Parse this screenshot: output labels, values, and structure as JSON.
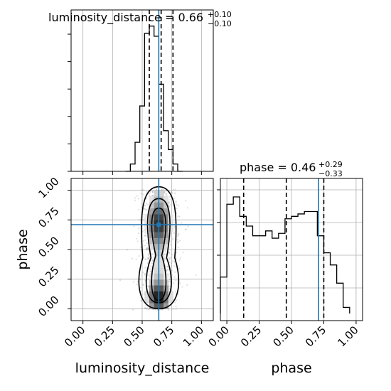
{
  "chart_data": {
    "type": "corner",
    "parameters": [
      "luminosity_distance",
      "phase"
    ],
    "truths": {
      "luminosity_distance": 0.64,
      "phase": 0.71
    },
    "grid": true,
    "ticks": [
      {
        "value": 0.0,
        "label": "0.00"
      },
      {
        "value": 0.25,
        "label": "0.25"
      },
      {
        "value": 0.5,
        "label": "0.50"
      },
      {
        "value": 0.75,
        "label": "0.75"
      },
      {
        "value": 1.0,
        "label": "1.00"
      }
    ],
    "marginals": {
      "luminosity_distance": {
        "title_prefix": "luminosity_distance = 0.66",
        "title_plus": "+0.10",
        "title_minus": "−0.10",
        "range": [
          -0.1,
          1.1
        ],
        "bin_width": 0.04,
        "bin_start": 0.36,
        "counts": [
          0,
          0.05,
          0.2,
          0.45,
          0.95,
          1.0,
          0.93,
          0.6,
          0.28,
          0.15,
          0.05,
          0.0
        ],
        "quantiles": [
          0.56,
          0.66,
          0.76
        ]
      },
      "phase": {
        "title_prefix": "phase = 0.46",
        "title_plus": "+0.29",
        "title_minus": "−0.33",
        "range": [
          -0.05,
          1.05
        ],
        "bin_width": 0.05,
        "bin_start": -0.05,
        "counts": [
          0.3,
          0.9,
          0.96,
          0.8,
          0.72,
          0.64,
          0.64,
          0.68,
          0.62,
          0.66,
          0.78,
          0.8,
          0.82,
          0.84,
          0.84,
          0.64,
          0.5,
          0.4,
          0.25,
          0.05
        ],
        "quantiles": [
          0.13,
          0.46,
          0.75
        ]
      }
    },
    "joint": {
      "x": "luminosity_distance",
      "y": "phase",
      "xlim": [
        -0.1,
        1.1
      ],
      "ylim": [
        -0.1,
        1.1
      ],
      "center_x": 0.64,
      "lobes_y": [
        0.1,
        0.72
      ],
      "x_std": 0.07,
      "contour_levels": [
        "outer",
        "middle",
        "inner"
      ]
    },
    "xlabels": [
      "luminosity_distance",
      "phase"
    ],
    "ylabel_row2": "phase"
  }
}
